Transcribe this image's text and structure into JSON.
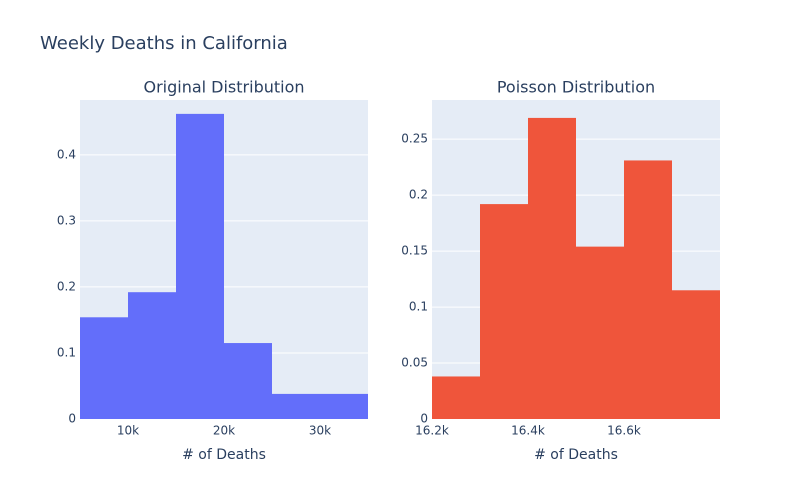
{
  "title": "Weekly Deaths in California",
  "chart_data": [
    {
      "type": "histogram",
      "title": "Original Distribution",
      "x_label": "# of Deaths",
      "bins": [
        5000,
        10000,
        15000,
        20000,
        25000,
        30000,
        35000
      ],
      "values": [
        0.154,
        0.192,
        0.462,
        0.115,
        0.038,
        0.038
      ],
      "color": "#636efa",
      "grid": true,
      "xlim": [
        5000,
        35000
      ],
      "xticks": [
        {
          "value": 10000,
          "label": "10k"
        },
        {
          "value": 20000,
          "label": "20k"
        },
        {
          "value": 30000,
          "label": "30k"
        }
      ],
      "ylim": [
        0,
        0.483
      ],
      "yticks": [
        0,
        0.1,
        0.2,
        0.3,
        0.4
      ]
    },
    {
      "type": "histogram",
      "title": "Poisson Distribution",
      "x_label": "# of Deaths",
      "bins": [
        16200,
        16300,
        16400,
        16500,
        16600,
        16700,
        16800
      ],
      "values": [
        0.038,
        0.192,
        0.269,
        0.154,
        0.231,
        0.115
      ],
      "color": "#ef553b",
      "grid": true,
      "xlim": [
        16200,
        16800
      ],
      "xticks": [
        {
          "value": 16200,
          "label": "16.2k"
        },
        {
          "value": 16400,
          "label": "16.4k"
        },
        {
          "value": 16600,
          "label": "16.6k"
        }
      ],
      "ylim": [
        0,
        0.285
      ],
      "yticks": [
        0,
        0.05,
        0.1,
        0.15,
        0.2,
        0.25
      ]
    }
  ]
}
